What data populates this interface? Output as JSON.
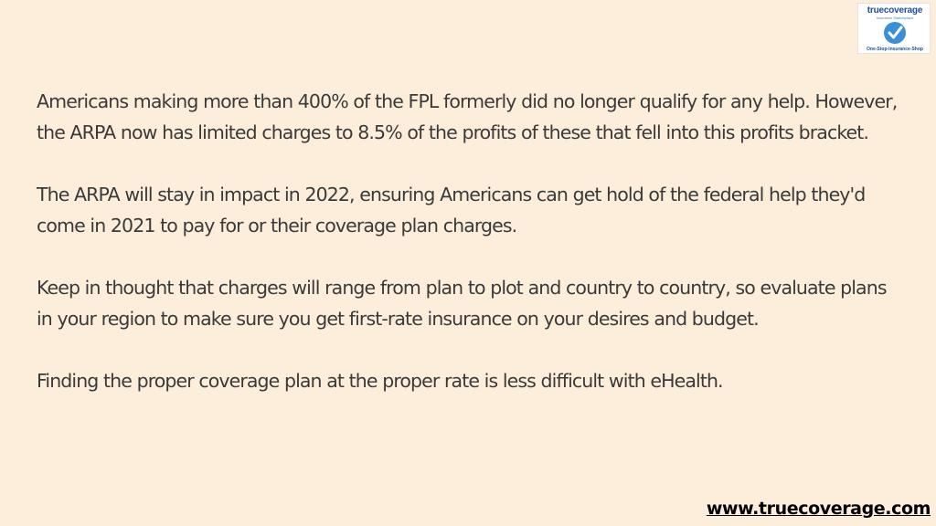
{
  "logo": {
    "brand": "truecoverage",
    "subtitle": "Insurance Marketplace",
    "tagline": "One-Stop-Insurance-Shop",
    "icon": "checkmark-circle-icon",
    "colors": {
      "primary": "#1b4f9c",
      "accent": "#3a8fd9"
    }
  },
  "paragraphs": [
    "Americans making more than 400% of the FPL formerly did no longer qualify for any help. However, the ARPA now has limited charges to 8.5% of the profits of these that fell into this profits bracket.",
    "The ARPA will stay in impact in 2022, ensuring Americans can get hold of the federal help they'd come in 2021 to pay for or their coverage plan charges.",
    "Keep in thought that charges will range from plan to plot and country to country, so evaluate plans in your region to make sure you get first-rate insurance on your desires and budget.",
    "Finding the proper coverage plan at the proper rate is less difficult with eHealth."
  ],
  "footer": {
    "url": "www.truecoverage.com"
  },
  "colors": {
    "background": "#fdeedb",
    "text": "#3a3a3a"
  }
}
